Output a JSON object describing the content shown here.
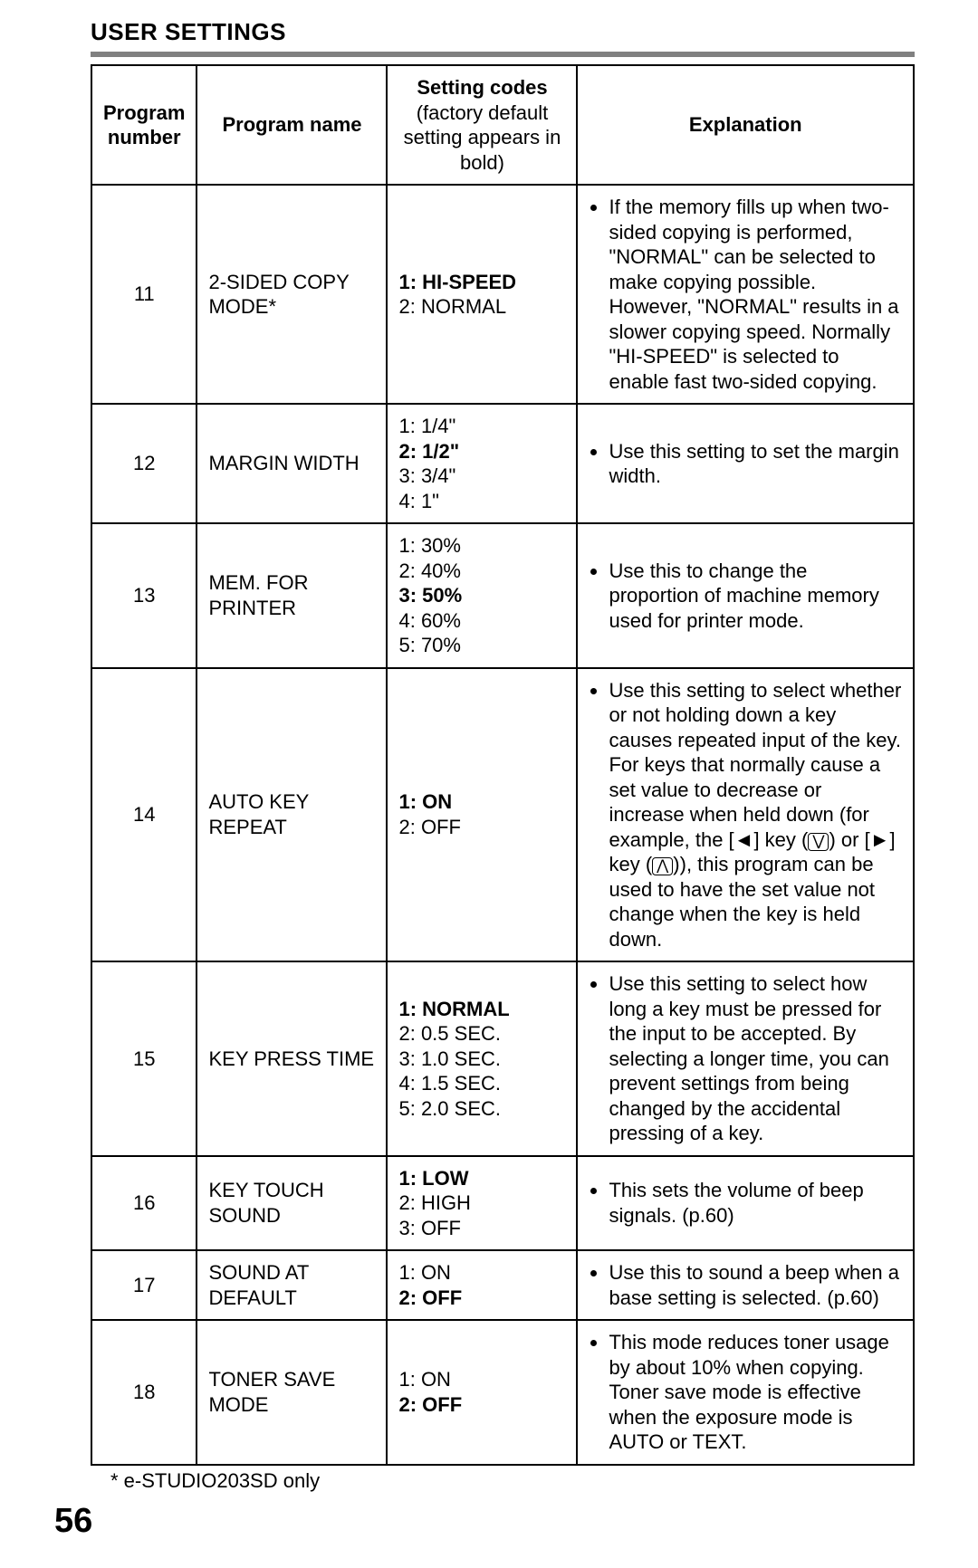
{
  "section_title": "USER SETTINGS",
  "page_number": "56",
  "footnote": "* e-STUDIO203SD only",
  "columns": {
    "col1": "Program number",
    "col2": "Program name",
    "col3_line1": "Setting codes",
    "col3_line2": "(factory default setting appears in bold)",
    "col4": "Explanation"
  },
  "rows": [
    {
      "num": "11",
      "name": "2-SIDED COPY MODE*",
      "codes": [
        {
          "text": "1: HI-SPEED",
          "bold": true
        },
        {
          "text": "2: NORMAL",
          "bold": false
        }
      ],
      "explanation": "If the memory fills up when two-sided copying is performed, \"NORMAL\" can be selected to make copying possible. However, \"NORMAL\" results in a slower copying speed. Normally \"HI-SPEED\" is selected to enable fast two-sided copying."
    },
    {
      "num": "12",
      "name": "MARGIN WIDTH",
      "codes": [
        {
          "text": "1: 1/4\"",
          "bold": false
        },
        {
          "text": "2: 1/2\"",
          "bold": true
        },
        {
          "text": "3: 3/4\"",
          "bold": false
        },
        {
          "text": "4: 1\"",
          "bold": false
        }
      ],
      "explanation": "Use this setting to set the margin width."
    },
    {
      "num": "13",
      "name": "MEM. FOR PRINTER",
      "codes": [
        {
          "text": "1: 30%",
          "bold": false
        },
        {
          "text": "2: 40%",
          "bold": false
        },
        {
          "text": "3: 50%",
          "bold": true
        },
        {
          "text": "4: 60%",
          "bold": false
        },
        {
          "text": "5: 70%",
          "bold": false
        }
      ],
      "explanation": "Use this to change the proportion of machine memory used for printer mode."
    },
    {
      "num": "14",
      "name": "AUTO KEY REPEAT",
      "codes": [
        {
          "text": "1: ON",
          "bold": true
        },
        {
          "text": "2: OFF",
          "bold": false
        }
      ],
      "explanation_html": true,
      "explanation": "Use this setting to select whether or not holding down a key causes repeated input of the key. For keys that normally cause a set value to decrease or increase when held down (for example, the [◄] key (<span class=\"key-glyph\">⋁</span>) or [►] key (<span class=\"key-glyph\">⋀</span>)), this program can be used to have the set value not change when the key is held down."
    },
    {
      "num": "15",
      "name": "KEY PRESS TIME",
      "codes": [
        {
          "text": "1: NORMAL",
          "bold": true
        },
        {
          "text": "2: 0.5 SEC.",
          "bold": false
        },
        {
          "text": "3: 1.0 SEC.",
          "bold": false
        },
        {
          "text": "4: 1.5 SEC.",
          "bold": false
        },
        {
          "text": "5: 2.0 SEC.",
          "bold": false
        }
      ],
      "explanation": "Use this setting to select how long a key must be pressed for the input to be accepted. By selecting a longer time, you can prevent settings from being changed by the accidental pressing of a key."
    },
    {
      "num": "16",
      "name": "KEY TOUCH SOUND",
      "codes": [
        {
          "text": "1: LOW",
          "bold": true
        },
        {
          "text": "2: HIGH",
          "bold": false
        },
        {
          "text": "3: OFF",
          "bold": false
        }
      ],
      "explanation": "This sets the volume of beep signals. (p.60)"
    },
    {
      "num": "17",
      "name": "SOUND AT DEFAULT",
      "codes": [
        {
          "text": "1: ON",
          "bold": false
        },
        {
          "text": "2: OFF",
          "bold": true
        }
      ],
      "explanation": "Use this to sound a beep when a base setting is selected. (p.60)"
    },
    {
      "num": "18",
      "name": "TONER SAVE MODE",
      "codes": [
        {
          "text": "1: ON",
          "bold": false
        },
        {
          "text": "2: OFF",
          "bold": true
        }
      ],
      "explanation": "This mode reduces toner usage by about 10% when copying. Toner save mode is effective when the exposure mode is AUTO or TEXT."
    }
  ]
}
